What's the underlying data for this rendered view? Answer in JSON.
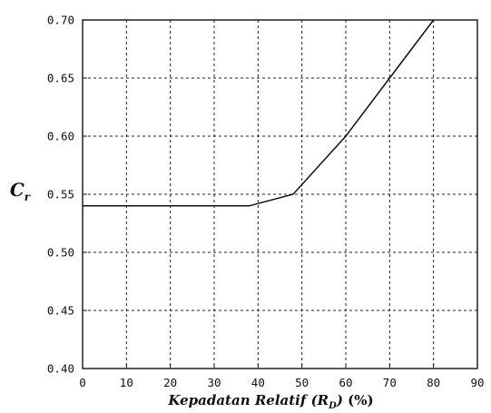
{
  "chart_data": {
    "type": "line",
    "title": "",
    "xlabel": {
      "main": "Kepadatan Relatif",
      "paren_open": "(R",
      "sub": "D",
      "paren_close": ")",
      "unit": "(%)"
    },
    "ylabel": {
      "main": "C",
      "sub": "r"
    },
    "xlim": [
      0,
      90
    ],
    "ylim": [
      0.4,
      0.7
    ],
    "xticks": [
      0,
      10,
      20,
      30,
      40,
      50,
      60,
      70,
      80,
      90
    ],
    "xtick_labels": [
      "0",
      "10",
      "20",
      "30",
      "40",
      "50",
      "60",
      "70",
      "80",
      "90"
    ],
    "yticks": [
      0.4,
      0.45,
      0.5,
      0.55,
      0.6,
      0.65,
      0.7
    ],
    "ytick_labels": [
      "0.40",
      "0.45",
      "0.50",
      "0.55",
      "0.60",
      "0.65",
      "0.70"
    ],
    "grid": true,
    "legend": "none",
    "series": [
      {
        "x": [
          0,
          38,
          48,
          60,
          70,
          80
        ],
        "y": [
          0.54,
          0.54,
          0.55,
          0.6,
          0.65,
          0.7
        ],
        "color": "#111111"
      }
    ]
  }
}
